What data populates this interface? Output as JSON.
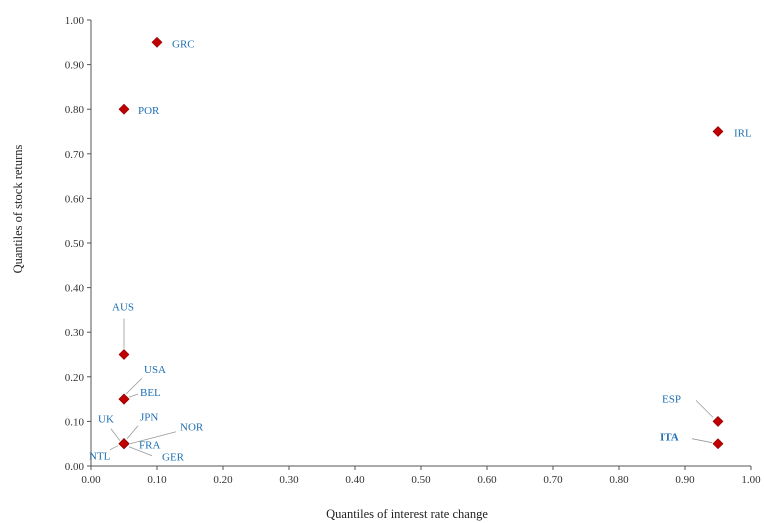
{
  "chart_data": {
    "type": "scatter",
    "title": "",
    "xlabel": "Quantiles of interest rate change",
    "ylabel": "Quantiles of stock returns",
    "xlim": [
      0,
      1
    ],
    "ylim": [
      0,
      1
    ],
    "xticks": [
      "0.00",
      "0.10",
      "0.20",
      "0.30",
      "0.40",
      "0.50",
      "0.60",
      "0.70",
      "0.80",
      "0.90",
      "1.00"
    ],
    "yticks": [
      "0.00",
      "0.10",
      "0.20",
      "0.30",
      "0.40",
      "0.50",
      "0.60",
      "0.70",
      "0.80",
      "0.90",
      "1.00"
    ],
    "grid": false,
    "legend": "none",
    "marker": "diamond",
    "colors": {
      "marker": "#c00000",
      "label": "#1f6fb2",
      "leader": "#999999",
      "axis": "#555555"
    },
    "points": [
      {
        "label": "GRC",
        "x": 0.1,
        "y": 0.95
      },
      {
        "label": "POR",
        "x": 0.05,
        "y": 0.8
      },
      {
        "label": "IRL",
        "x": 0.95,
        "y": 0.75
      },
      {
        "label": "AUS",
        "x": 0.05,
        "y": 0.25
      },
      {
        "label": "USA",
        "x": 0.05,
        "y": 0.15
      },
      {
        "label": "BEL",
        "x": 0.05,
        "y": 0.15
      },
      {
        "label": "JPN",
        "x": 0.05,
        "y": 0.05
      },
      {
        "label": "UK",
        "x": 0.05,
        "y": 0.05
      },
      {
        "label": "NOR",
        "x": 0.05,
        "y": 0.05
      },
      {
        "label": "FRA",
        "x": 0.05,
        "y": 0.05
      },
      {
        "label": "NTL",
        "x": 0.05,
        "y": 0.05
      },
      {
        "label": "GER",
        "x": 0.05,
        "y": 0.05
      },
      {
        "label": "ESP",
        "x": 0.95,
        "y": 0.1
      },
      {
        "label": "ITA",
        "x": 0.95,
        "y": 0.05
      }
    ]
  }
}
